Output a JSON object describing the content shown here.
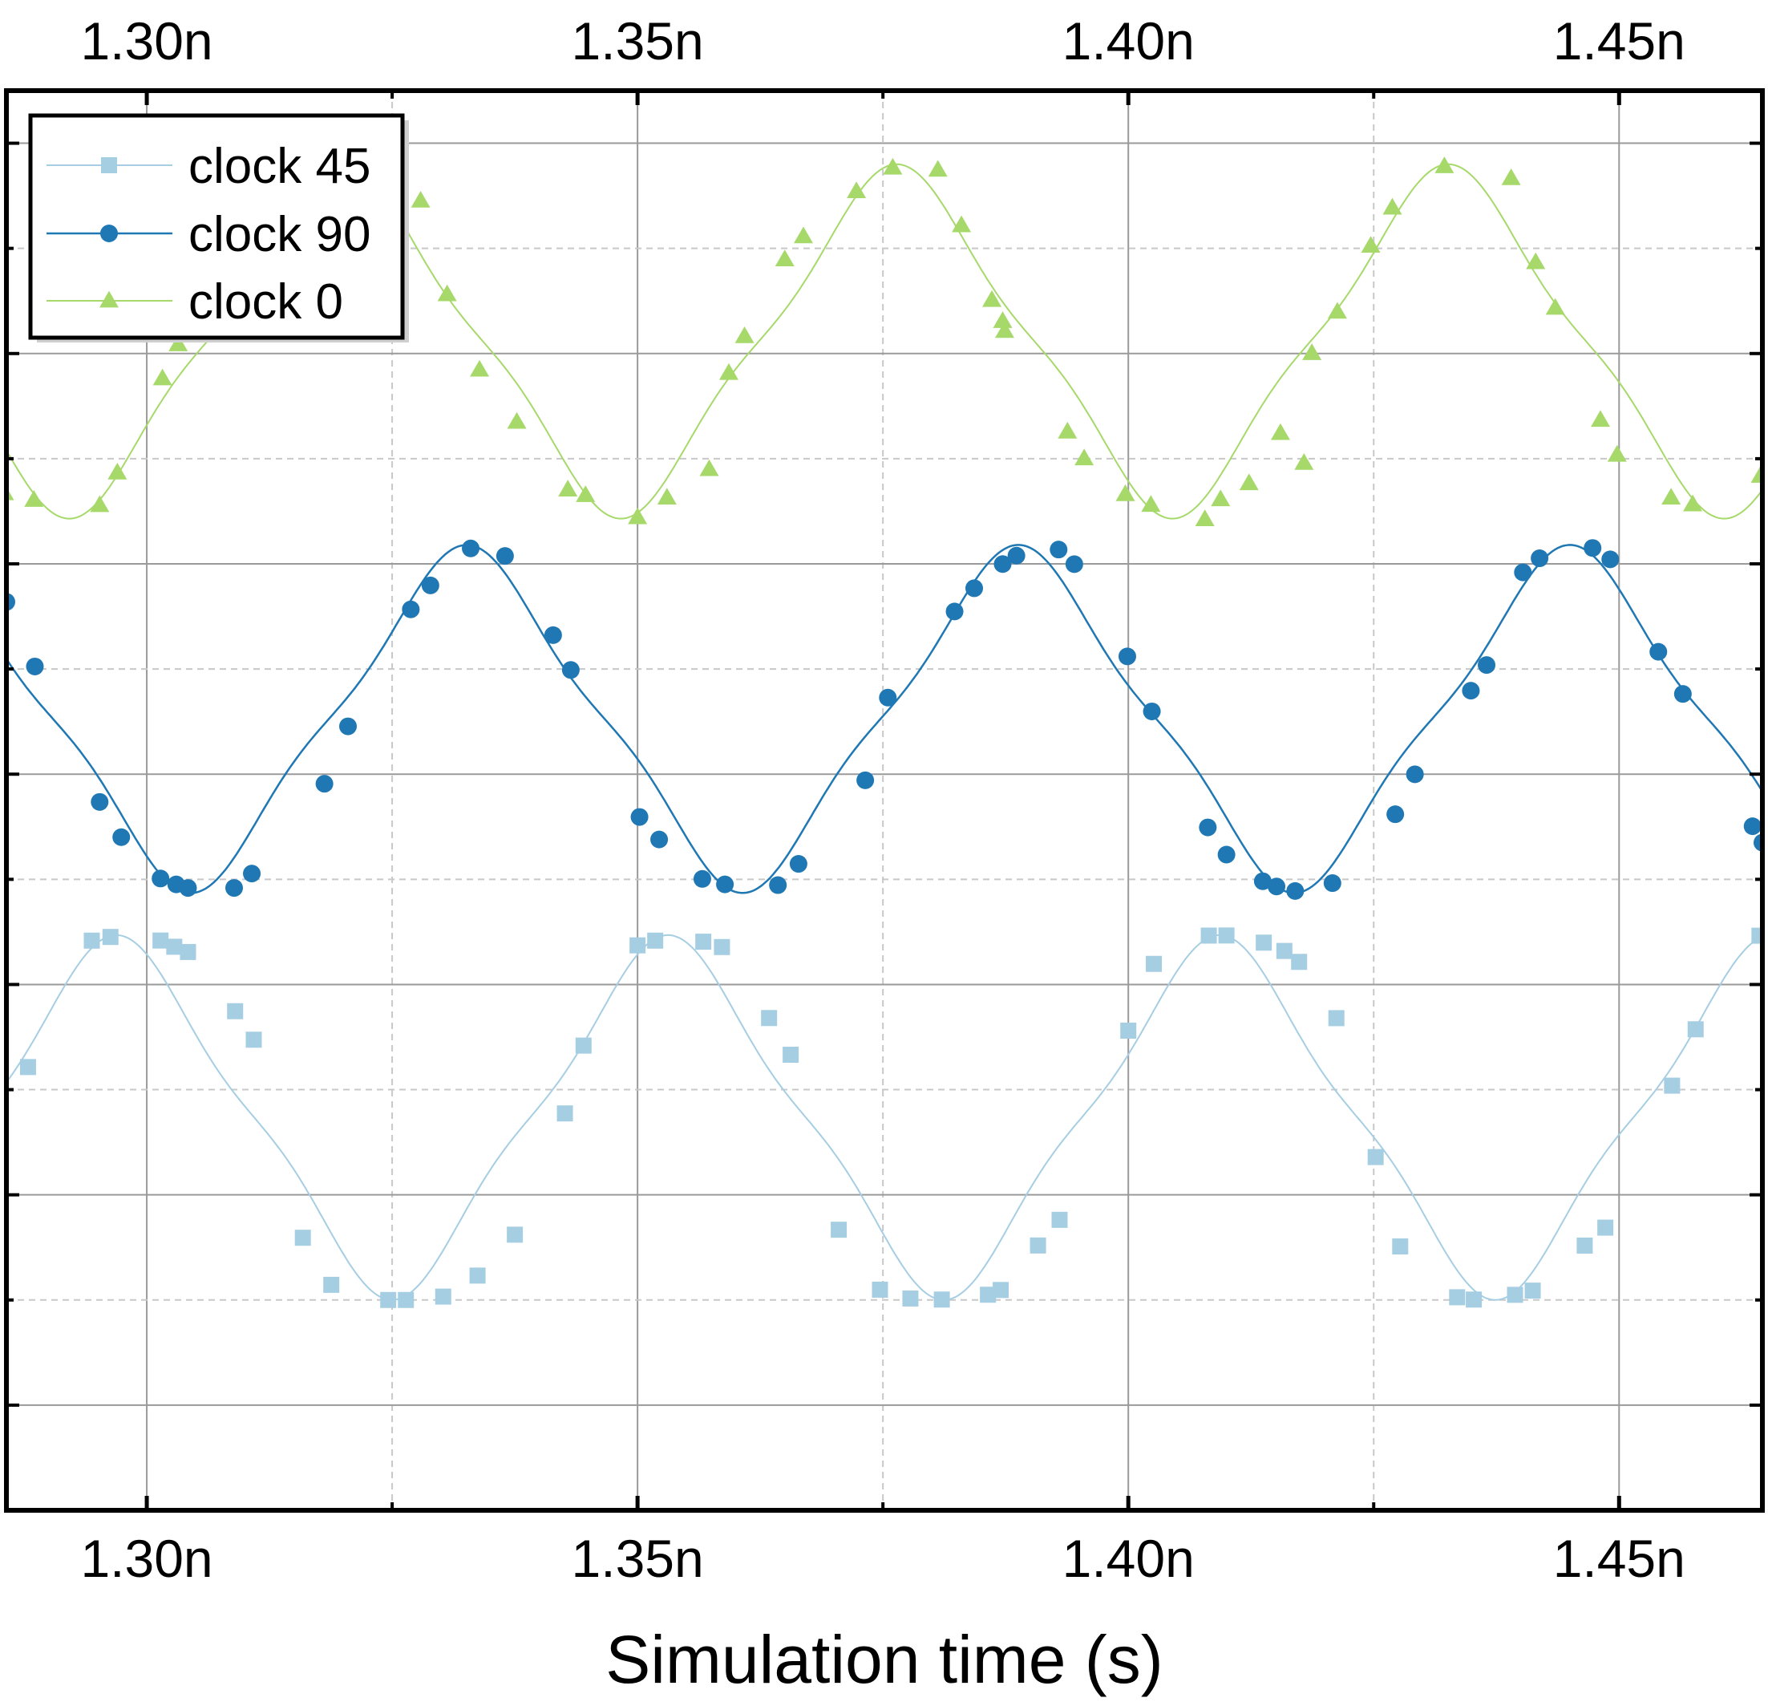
{
  "chart_data": {
    "type": "line",
    "xlabel": "Simulation time (s)",
    "ylabel": "",
    "xlim": [
      1.2857,
      1.4646
    ],
    "ylim": [
      -0.9,
      0.45
    ],
    "x_ticks": [
      1.3,
      1.35,
      1.4,
      1.45
    ],
    "x_tick_labels": [
      "1.30n",
      "1.35n",
      "1.40n",
      "1.45n"
    ],
    "x_minor_ticks": [
      1.325,
      1.375,
      1.425
    ],
    "y_ticks": [
      -0.8,
      -0.7,
      -0.6,
      -0.5,
      -0.4,
      -0.3,
      -0.2,
      -0.1,
      0.0,
      0.1,
      0.2,
      0.3,
      0.4
    ],
    "grid": true,
    "legend_position": "top-left",
    "series": [
      {
        "name": "clock 45",
        "color": "#a6cee3",
        "marker": "square",
        "period": 0.0562,
        "phase_max": 1.2969,
        "peak": -0.353,
        "trough": -0.7,
        "points": [
          [
            1.2879,
            -0.4785
          ],
          [
            1.2944,
            -0.3583
          ],
          [
            1.2963,
            -0.3548
          ],
          [
            1.3014,
            -0.3582
          ],
          [
            1.3028,
            -0.3641
          ],
          [
            1.3042,
            -0.3691
          ],
          [
            1.309,
            -0.4254
          ],
          [
            1.3109,
            -0.4525
          ],
          [
            1.3159,
            -0.6408
          ],
          [
            1.3188,
            -0.6856
          ],
          [
            1.3246,
            -0.7
          ],
          [
            1.3264,
            -0.7
          ],
          [
            1.3302,
            -0.6968
          ],
          [
            1.3337,
            -0.6768
          ],
          [
            1.3375,
            -0.6379
          ],
          [
            1.3426,
            -0.5226
          ],
          [
            1.3445,
            -0.4581
          ],
          [
            1.35,
            -0.3628
          ],
          [
            1.3518,
            -0.3583
          ],
          [
            1.3567,
            -0.3593
          ],
          [
            1.3586,
            -0.3644
          ],
          [
            1.3634,
            -0.4319
          ],
          [
            1.3656,
            -0.4668
          ],
          [
            1.3705,
            -0.6332
          ],
          [
            1.3747,
            -0.6902
          ],
          [
            1.3778,
            -0.6986
          ],
          [
            1.381,
            -0.6996
          ],
          [
            1.3857,
            -0.695
          ],
          [
            1.387,
            -0.6905
          ],
          [
            1.3908,
            -0.6482
          ],
          [
            1.393,
            -0.6238
          ],
          [
            1.4,
            -0.4439
          ],
          [
            1.4026,
            -0.3804
          ],
          [
            1.4082,
            -0.3535
          ],
          [
            1.41,
            -0.3534
          ],
          [
            1.4138,
            -0.3602
          ],
          [
            1.4159,
            -0.3681
          ],
          [
            1.4174,
            -0.3785
          ],
          [
            1.4212,
            -0.432
          ],
          [
            1.4252,
            -0.5641
          ],
          [
            1.4277,
            -0.6491
          ],
          [
            1.4335,
            -0.6974
          ],
          [
            1.4352,
            -0.6996
          ],
          [
            1.4394,
            -0.6951
          ],
          [
            1.4412,
            -0.6911
          ],
          [
            1.4465,
            -0.6483
          ],
          [
            1.4486,
            -0.6312
          ],
          [
            1.4554,
            -0.4962
          ],
          [
            1.4578,
            -0.4426
          ],
          [
            1.4643,
            -0.3536
          ]
        ]
      },
      {
        "name": "clock 90",
        "color": "#1f78b4",
        "marker": "circle",
        "period": 0.0562,
        "phase_max": 1.3326,
        "peak": 0.018,
        "trough": -0.313,
        "points": [
          [
            1.2857,
            -0.0362
          ],
          [
            1.2886,
            -0.0976
          ],
          [
            1.2952,
            -0.2264
          ],
          [
            1.2974,
            -0.2599
          ],
          [
            1.3014,
            -0.2992
          ],
          [
            1.303,
            -0.3048
          ],
          [
            1.3042,
            -0.3082
          ],
          [
            1.3089,
            -0.3082
          ],
          [
            1.3107,
            -0.2945
          ],
          [
            1.3181,
            -0.2091
          ],
          [
            1.3205,
            -0.1545
          ],
          [
            1.3269,
            -0.0433
          ],
          [
            1.3289,
            -0.0205
          ],
          [
            1.333,
            0.0147
          ],
          [
            1.3365,
            0.0075
          ],
          [
            1.3414,
            -0.0678
          ],
          [
            1.3432,
            -0.1009
          ],
          [
            1.3502,
            -0.2407
          ],
          [
            1.3522,
            -0.2621
          ],
          [
            1.3566,
            -0.2996
          ],
          [
            1.3589,
            -0.3048
          ],
          [
            1.3643,
            -0.3055
          ],
          [
            1.3664,
            -0.2853
          ],
          [
            1.3732,
            -0.2058
          ],
          [
            1.3755,
            -0.1272
          ],
          [
            1.3823,
            -0.0453
          ],
          [
            1.3843,
            -0.0232
          ],
          [
            1.3872,
            -0.0002
          ],
          [
            1.3886,
            0.0078
          ],
          [
            1.3929,
            0.0136
          ],
          [
            1.3945,
            -0.0003
          ],
          [
            1.3999,
            -0.088
          ],
          [
            1.4024,
            -0.1403
          ],
          [
            1.4081,
            -0.2506
          ],
          [
            1.41,
            -0.2765
          ],
          [
            1.4137,
            -0.3018
          ],
          [
            1.4151,
            -0.3068
          ],
          [
            1.417,
            -0.3111
          ],
          [
            1.4208,
            -0.3036
          ],
          [
            1.4272,
            -0.2381
          ],
          [
            1.4292,
            -0.2001
          ],
          [
            1.4349,
            -0.1206
          ],
          [
            1.4365,
            -0.0962
          ],
          [
            1.4402,
            -0.0081
          ],
          [
            1.4419,
            0.0053
          ],
          [
            1.4473,
            0.0151
          ],
          [
            1.4491,
            0.0043
          ],
          [
            1.454,
            -0.0836
          ],
          [
            1.4565,
            -0.1237
          ],
          [
            1.4636,
            -0.2495
          ],
          [
            1.4646,
            -0.2651
          ]
        ]
      },
      {
        "name": "clock 0",
        "color": "#a6d96a",
        "marker": "triangle",
        "period": 0.0562,
        "phase_max": 1.3764,
        "peak": 0.38,
        "trough": 0.043,
        "points": [
          [
            1.2855,
            0.0669
          ],
          [
            1.2885,
            0.0607
          ],
          [
            1.2952,
            0.0557
          ],
          [
            1.297,
            0.0867
          ],
          [
            1.3016,
            0.1762
          ],
          [
            1.3032,
            0.2086
          ],
          [
            1.3039,
            0.2271
          ],
          [
            1.305,
            0.2313
          ],
          [
            1.3279,
            0.3452
          ],
          [
            1.3306,
            0.2562
          ],
          [
            1.3339,
            0.1845
          ],
          [
            1.3377,
            0.1349
          ],
          [
            1.3429,
            0.0705
          ],
          [
            1.3447,
            0.0652
          ],
          [
            1.35,
            0.0442
          ],
          [
            1.353,
            0.0628
          ],
          [
            1.3573,
            0.0899
          ],
          [
            1.3593,
            0.1814
          ],
          [
            1.3609,
            0.2163
          ],
          [
            1.365,
            0.2894
          ],
          [
            1.3669,
            0.3113
          ],
          [
            1.3723,
            0.3542
          ],
          [
            1.376,
            0.3766
          ],
          [
            1.3806,
            0.3746
          ],
          [
            1.383,
            0.3218
          ],
          [
            1.3861,
            0.2508
          ],
          [
            1.3872,
            0.2307
          ],
          [
            1.3874,
            0.2213
          ],
          [
            1.3938,
            0.1256
          ],
          [
            1.3955,
            0.1001
          ],
          [
            1.3997,
            0.0661
          ],
          [
            1.4023,
            0.0559
          ],
          [
            1.4078,
            0.0423
          ],
          [
            1.4094,
            0.0612
          ],
          [
            1.4123,
            0.0765
          ],
          [
            1.4155,
            0.1242
          ],
          [
            1.4179,
            0.0958
          ],
          [
            1.4187,
            0.2002
          ],
          [
            1.4213,
            0.2396
          ],
          [
            1.4247,
            0.3023
          ],
          [
            1.4269,
            0.3386
          ],
          [
            1.4322,
            0.3779
          ],
          [
            1.439,
            0.3666
          ],
          [
            1.4415,
            0.2867
          ],
          [
            1.4435,
            0.2433
          ],
          [
            1.4481,
            0.1367
          ],
          [
            1.4498,
            0.1036
          ],
          [
            1.4553,
            0.0628
          ],
          [
            1.4575,
            0.0564
          ],
          [
            1.4644,
            0.0835
          ]
        ]
      }
    ]
  }
}
